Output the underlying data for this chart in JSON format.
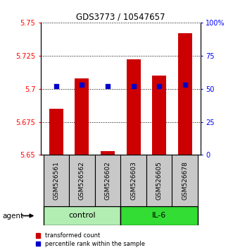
{
  "title": "GDS3773 / 10547657",
  "samples": [
    "GSM526561",
    "GSM526562",
    "GSM526602",
    "GSM526603",
    "GSM526605",
    "GSM526678"
  ],
  "red_values": [
    5.685,
    5.708,
    5.653,
    5.722,
    5.71,
    5.742
  ],
  "blue_pct": [
    52,
    53,
    52,
    52,
    52,
    53
  ],
  "ylim_left": [
    5.65,
    5.75
  ],
  "ylim_right": [
    0,
    100
  ],
  "yticks_left": [
    5.65,
    5.675,
    5.7,
    5.725,
    5.75
  ],
  "yticks_right": [
    0,
    25,
    50,
    75,
    100
  ],
  "ytick_labels_left": [
    "5.65",
    "5.675",
    "5.7",
    "5.725",
    "5.75"
  ],
  "ytick_labels_right": [
    "0",
    "25",
    "50",
    "75",
    "100%"
  ],
  "groups": [
    {
      "label": "control",
      "indices": [
        0,
        1,
        2
      ],
      "color": "#B2EEB2"
    },
    {
      "label": "IL-6",
      "indices": [
        3,
        4,
        5
      ],
      "color": "#33DD33"
    }
  ],
  "bar_color": "#CC0000",
  "dot_color": "#0000CC",
  "bar_width": 0.55,
  "agent_label": "agent",
  "legend_red": "transformed count",
  "legend_blue": "percentile rank within the sample",
  "sample_box_color": "#C8C8C8",
  "grid_linestyle": "dotted",
  "grid_linewidth": 0.7
}
